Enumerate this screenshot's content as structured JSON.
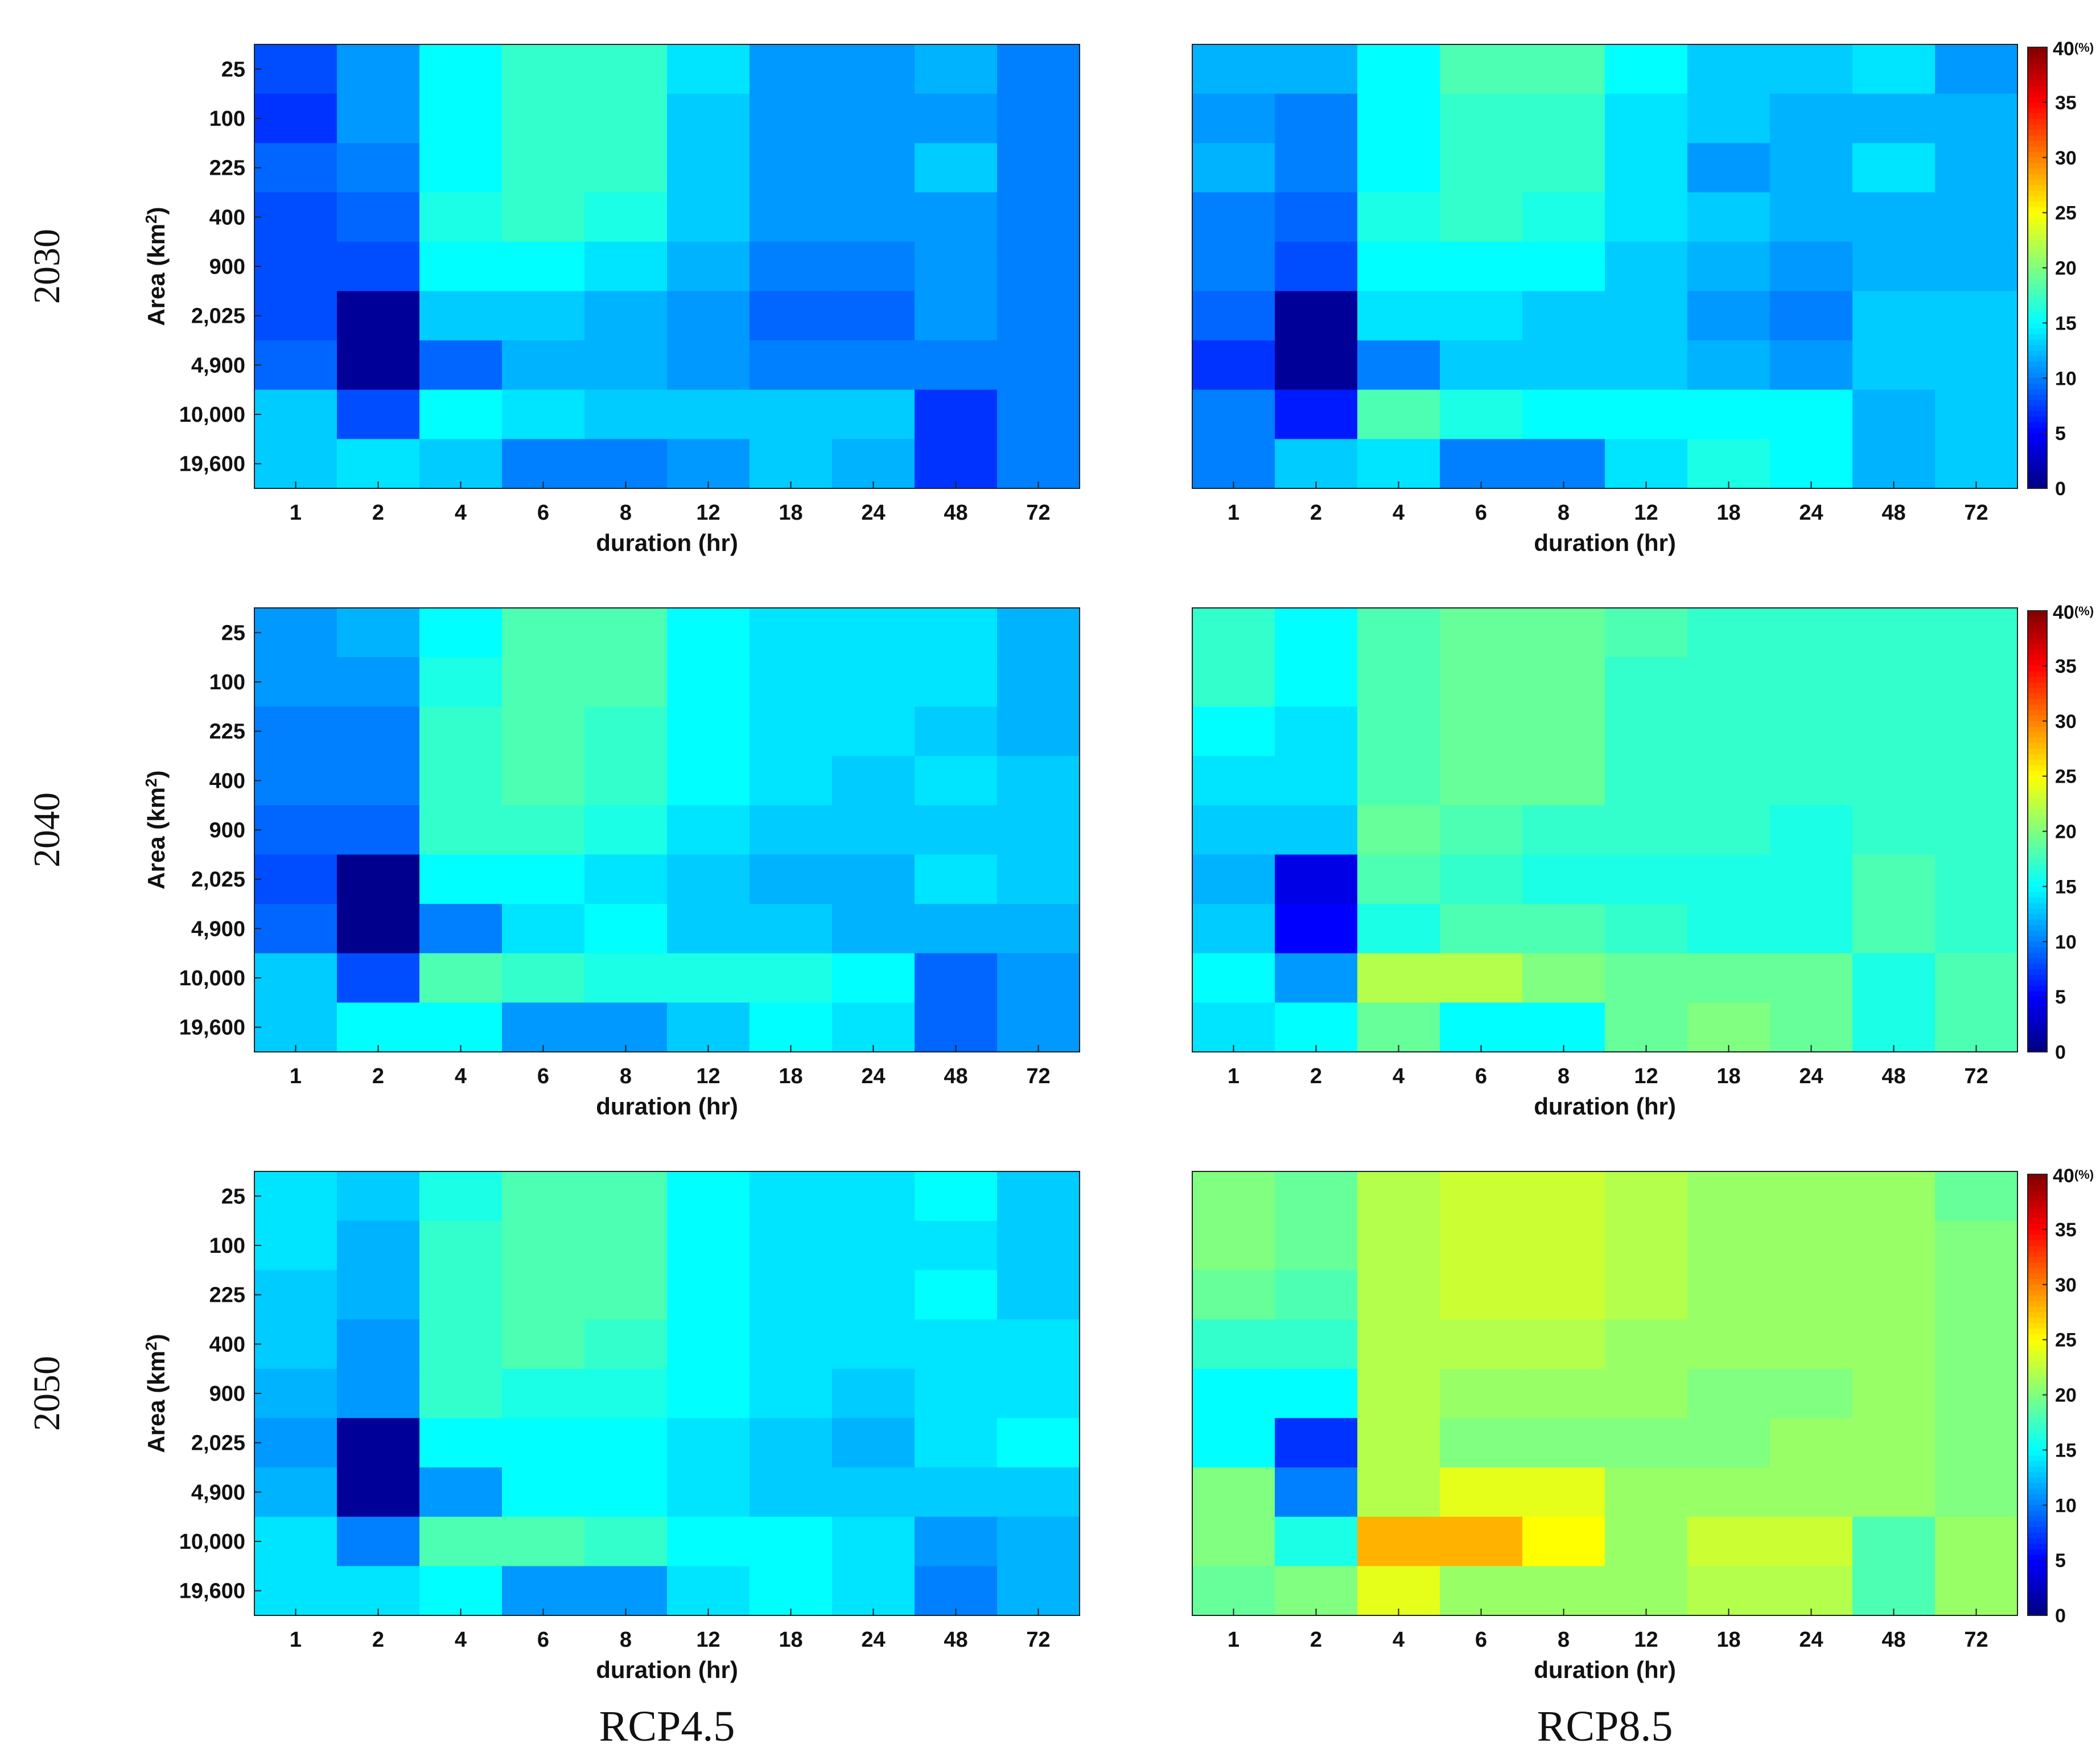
{
  "chart_data": {
    "type": "heatmap",
    "row_labels": [
      "2030",
      "2040",
      "2050"
    ],
    "column_labels": [
      "RCP4.5",
      "RCP8.5"
    ],
    "x_categories": [
      "1",
      "2",
      "4",
      "6",
      "8",
      "12",
      "18",
      "24",
      "48",
      "72"
    ],
    "y_categories": [
      "25",
      "100",
      "225",
      "400",
      "900",
      "2,025",
      "4,900",
      "10,000",
      "19,600"
    ],
    "xlabel": "duration (hr)",
    "ylabel": "Area (km",
    "ylabel_sup": "2",
    "ylabel_tail": ")",
    "colorbar": {
      "min": 0,
      "max": 40,
      "ticks": [
        "0",
        "5",
        "10",
        "15",
        "20",
        "25",
        "30",
        "35"
      ],
      "top_tick": "40",
      "unit": "(%)"
    },
    "panels": [
      {
        "year": "2030",
        "scenario": "RCP4.5",
        "show_y_ticks": true,
        "values": [
          [
            8,
            11,
            15,
            17,
            17,
            14,
            11,
            11,
            12,
            10
          ],
          [
            7,
            11,
            15,
            17,
            17,
            13,
            11,
            11,
            11,
            10
          ],
          [
            9,
            10,
            15,
            17,
            17,
            13,
            11,
            11,
            13,
            10
          ],
          [
            8,
            9,
            16,
            17,
            16,
            13,
            11,
            11,
            11,
            10
          ],
          [
            8,
            8,
            15,
            15,
            14,
            12,
            10,
            10,
            11,
            10
          ],
          [
            8,
            1,
            13,
            13,
            12,
            11,
            9,
            9,
            11,
            10
          ],
          [
            9,
            1,
            9,
            12,
            12,
            11,
            10,
            10,
            10,
            10
          ],
          [
            13,
            8,
            15,
            14,
            13,
            13,
            13,
            13,
            7,
            10
          ],
          [
            13,
            14,
            13,
            10,
            10,
            11,
            13,
            12,
            7,
            10
          ]
        ]
      },
      {
        "year": "2030",
        "scenario": "RCP8.5",
        "show_y_ticks": false,
        "values": [
          [
            12,
            12,
            15,
            18,
            18,
            15,
            13,
            13,
            14,
            11
          ],
          [
            11,
            10,
            15,
            17,
            17,
            14,
            13,
            12,
            12,
            12
          ],
          [
            12,
            10,
            15,
            17,
            17,
            14,
            11,
            12,
            14,
            12
          ],
          [
            10,
            9,
            16,
            17,
            16,
            14,
            13,
            12,
            12,
            12
          ],
          [
            10,
            8,
            15,
            15,
            15,
            13,
            12,
            11,
            12,
            12
          ],
          [
            9,
            1,
            14,
            14,
            13,
            13,
            11,
            10,
            13,
            13
          ],
          [
            7,
            1,
            10,
            13,
            13,
            13,
            12,
            11,
            13,
            13
          ],
          [
            10,
            6,
            18,
            16,
            15,
            15,
            15,
            15,
            12,
            13
          ],
          [
            10,
            13,
            14,
            10,
            10,
            14,
            16,
            15,
            12,
            13
          ]
        ]
      },
      {
        "year": "2040",
        "scenario": "RCP4.5",
        "show_y_ticks": true,
        "values": [
          [
            11,
            12,
            15,
            18,
            18,
            15,
            14,
            14,
            14,
            12
          ],
          [
            11,
            11,
            16,
            18,
            18,
            15,
            14,
            14,
            14,
            12
          ],
          [
            10,
            10,
            17,
            18,
            17,
            15,
            14,
            14,
            13,
            12
          ],
          [
            10,
            10,
            17,
            18,
            17,
            15,
            14,
            13,
            14,
            13
          ],
          [
            9,
            9,
            17,
            17,
            16,
            14,
            13,
            13,
            13,
            13
          ],
          [
            8,
            0.5,
            15,
            15,
            14,
            13,
            12,
            12,
            14,
            13
          ],
          [
            9,
            0.5,
            10,
            14,
            15,
            13,
            13,
            12,
            12,
            12
          ],
          [
            13,
            8,
            18,
            17,
            16,
            16,
            16,
            15,
            9,
            11
          ],
          [
            13,
            15,
            15,
            11,
            11,
            13,
            15,
            14,
            9,
            11
          ]
        ]
      },
      {
        "year": "2040",
        "scenario": "RCP8.5",
        "show_y_ticks": false,
        "values": [
          [
            17,
            15,
            18,
            19,
            19,
            18,
            17,
            17,
            17,
            17
          ],
          [
            17,
            15,
            18,
            19,
            19,
            17,
            17,
            17,
            17,
            17
          ],
          [
            15,
            14,
            18,
            19,
            19,
            17,
            17,
            17,
            17,
            17
          ],
          [
            14,
            14,
            18,
            19,
            19,
            17,
            17,
            17,
            17,
            17
          ],
          [
            13,
            13,
            19,
            18,
            17,
            17,
            17,
            16,
            17,
            17
          ],
          [
            12,
            4,
            18,
            17,
            16,
            16,
            16,
            16,
            18,
            17
          ],
          [
            13,
            5,
            16,
            18,
            18,
            17,
            16,
            16,
            18,
            17
          ],
          [
            15,
            11,
            22,
            22,
            20,
            19,
            19,
            19,
            16,
            18
          ],
          [
            14,
            15,
            19,
            15,
            15,
            19,
            20,
            19,
            16,
            18
          ]
        ]
      },
      {
        "year": "2050",
        "scenario": "RCP4.5",
        "show_y_ticks": true,
        "values": [
          [
            14,
            13,
            16,
            18,
            18,
            15,
            14,
            14,
            15,
            13
          ],
          [
            14,
            12,
            17,
            18,
            18,
            15,
            14,
            14,
            14,
            13
          ],
          [
            13,
            12,
            17,
            18,
            18,
            15,
            14,
            14,
            15,
            13
          ],
          [
            13,
            11,
            17,
            18,
            17,
            15,
            14,
            14,
            14,
            14
          ],
          [
            12,
            11,
            17,
            16,
            16,
            15,
            14,
            13,
            14,
            14
          ],
          [
            11,
            1,
            15,
            15,
            15,
            14,
            13,
            12,
            14,
            15
          ],
          [
            12,
            1,
            11,
            15,
            15,
            14,
            13,
            13,
            13,
            13
          ],
          [
            14,
            10,
            18,
            18,
            17,
            15,
            15,
            14,
            11,
            12
          ],
          [
            14,
            14,
            15,
            11,
            11,
            14,
            15,
            14,
            10,
            12
          ]
        ]
      },
      {
        "year": "2050",
        "scenario": "RCP8.5",
        "show_y_ticks": false,
        "values": [
          [
            20,
            19,
            22,
            23,
            23,
            22,
            21,
            21,
            21,
            19
          ],
          [
            20,
            19,
            22,
            23,
            23,
            22,
            21,
            21,
            21,
            20
          ],
          [
            19,
            18,
            22,
            23,
            23,
            22,
            21,
            21,
            21,
            20
          ],
          [
            17,
            17,
            22,
            22,
            22,
            21,
            21,
            21,
            21,
            20
          ],
          [
            15,
            15,
            22,
            21,
            21,
            21,
            20,
            20,
            21,
            20
          ],
          [
            15,
            7,
            22,
            20,
            20,
            20,
            20,
            21,
            21,
            20
          ],
          [
            20,
            10,
            22,
            24,
            24,
            21,
            21,
            21,
            21,
            20
          ],
          [
            20,
            16,
            28,
            28,
            25,
            21,
            23,
            23,
            18,
            21
          ],
          [
            19,
            20,
            24,
            21,
            21,
            21,
            22,
            22,
            18,
            21
          ]
        ]
      }
    ]
  }
}
